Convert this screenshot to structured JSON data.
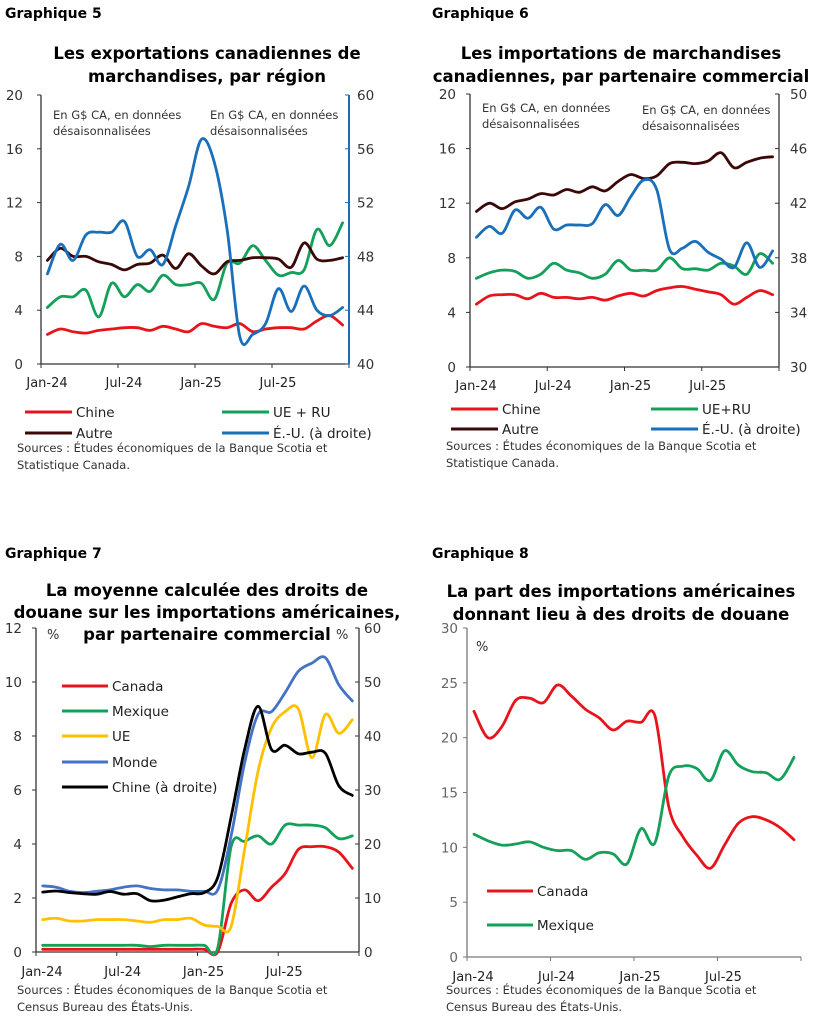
{
  "chart_data": [
    {
      "type": "line",
      "label": "Graphique 5",
      "title_lines": [
        "Les exportations canadiennes de",
        "marchandises, par région"
      ],
      "annotations": [
        "En G$ CA, en données",
        "désaisonnalisées",
        "En G$ CA, en données",
        "désaisonnalisées"
      ],
      "x": [
        "Jan-24",
        "Feb-24",
        "Mar-24",
        "Apr-24",
        "May-24",
        "Jun-24",
        "Jul-24",
        "Aug-24",
        "Sep-24",
        "Oct-24",
        "Nov-24",
        "Dec-24",
        "Jan-25",
        "Feb-25",
        "Mar-25",
        "Apr-25",
        "May-25",
        "Jun-25",
        "Jul-25",
        "Aug-25",
        "Sep-25",
        "Oct-25",
        "Nov-25",
        "Dec-25"
      ],
      "x_tick_labels": [
        "Jan-24",
        "Jul-24",
        "Jan-25",
        "Jul-25"
      ],
      "ylim_left": [
        0,
        20
      ],
      "yticks_left": [
        "0",
        "4",
        "8",
        "12",
        "16",
        "20"
      ],
      "ylim_right": [
        40,
        60
      ],
      "yticks_right": [
        "40",
        "44",
        "48",
        "52",
        "56",
        "60"
      ],
      "right_axis_color": "#1a6fba",
      "series": [
        {
          "name": "Chine",
          "axis": "left",
          "color": "#e8141c",
          "values": [
            2.2,
            2.6,
            2.4,
            2.3,
            2.5,
            2.6,
            2.7,
            2.7,
            2.5,
            2.8,
            2.6,
            2.4,
            3.0,
            2.8,
            2.7,
            3.0,
            2.4,
            2.6,
            2.7,
            2.7,
            2.6,
            3.2,
            3.6,
            2.9
          ]
        },
        {
          "name": "UE + RU",
          "axis": "left",
          "color": "#13a05a",
          "values": [
            4.2,
            5.0,
            5.0,
            5.5,
            3.5,
            6.0,
            5.0,
            5.9,
            5.4,
            6.6,
            5.9,
            5.9,
            6.0,
            4.8,
            7.5,
            7.5,
            8.8,
            7.7,
            6.6,
            6.8,
            7.0,
            10.0,
            8.8,
            10.5
          ]
        },
        {
          "name": "Autre",
          "axis": "left",
          "color": "#3b0808",
          "values": [
            7.7,
            8.6,
            8.0,
            8.0,
            7.6,
            7.4,
            7.0,
            7.4,
            7.5,
            8.1,
            7.1,
            8.2,
            7.3,
            6.7,
            7.6,
            7.7,
            7.9,
            7.9,
            7.8,
            7.2,
            9.0,
            7.8,
            7.7,
            7.9
          ]
        },
        {
          "name": "É.-U. (à droite)",
          "axis": "right",
          "color": "#1a6fba",
          "values": [
            46.7,
            48.9,
            47.7,
            49.6,
            49.8,
            49.8,
            50.6,
            48.0,
            48.5,
            47.4,
            50.3,
            53.2,
            56.7,
            55.0,
            50.0,
            42.0,
            42.2,
            43.0,
            45.6,
            43.9,
            45.8,
            44.0,
            43.6,
            44.2
          ]
        }
      ],
      "sources": [
        "Sources : Études économiques de la Banque Scotia et",
        "Statistique Canada."
      ]
    },
    {
      "type": "line",
      "label": "Graphique 6",
      "title_lines": [
        "Les importations de marchandises",
        "canadiennes, par partenaire commercial"
      ],
      "annotations": [
        "En G$ CA, en données",
        "désaisonnalisées",
        "En G$ CA, en données",
        "désaisonnalisées"
      ],
      "x": [
        "Jan-24",
        "Feb-24",
        "Mar-24",
        "Apr-24",
        "May-24",
        "Jun-24",
        "Jul-24",
        "Aug-24",
        "Sep-24",
        "Oct-24",
        "Nov-24",
        "Dec-24",
        "Jan-25",
        "Feb-25",
        "Mar-25",
        "Apr-25",
        "May-25",
        "Jun-25",
        "Jul-25",
        "Aug-25",
        "Sep-25",
        "Oct-25",
        "Nov-25",
        "Dec-25"
      ],
      "x_tick_labels": [
        "Jan-24",
        "Jul-24",
        "Jan-25",
        "Jul-25"
      ],
      "ylim_left": [
        0,
        20
      ],
      "yticks_left": [
        "0",
        "4",
        "8",
        "12",
        "16",
        "20"
      ],
      "ylim_right": [
        30,
        50
      ],
      "yticks_right": [
        "30",
        "34",
        "38",
        "42",
        "46",
        "50"
      ],
      "right_axis_color": "#333333",
      "series": [
        {
          "name": "Chine",
          "axis": "left",
          "color": "#e8141c",
          "values": [
            4.6,
            5.2,
            5.3,
            5.3,
            5.0,
            5.4,
            5.1,
            5.1,
            5.0,
            5.1,
            4.9,
            5.2,
            5.4,
            5.2,
            5.6,
            5.8,
            5.9,
            5.7,
            5.5,
            5.3,
            4.6,
            5.1,
            5.6,
            5.3
          ]
        },
        {
          "name": "UE+RU",
          "axis": "left",
          "color": "#13a05a",
          "values": [
            6.5,
            6.9,
            7.1,
            7.0,
            6.5,
            6.8,
            7.6,
            7.1,
            6.9,
            6.5,
            6.8,
            7.8,
            7.1,
            7.1,
            7.1,
            8.0,
            7.2,
            7.2,
            7.1,
            7.6,
            7.4,
            6.8,
            8.3,
            7.6
          ]
        },
        {
          "name": "Autre",
          "axis": "left",
          "color": "#3b0808",
          "values": [
            11.4,
            12.0,
            11.6,
            12.1,
            12.3,
            12.7,
            12.6,
            13.0,
            12.8,
            13.2,
            12.9,
            13.6,
            14.1,
            13.8,
            14.0,
            14.9,
            15.0,
            14.9,
            15.1,
            15.7,
            14.6,
            15.0,
            15.3,
            15.4
          ]
        },
        {
          "name": "É.-U. (à droite)",
          "axis": "right",
          "color": "#1a6fba",
          "values": [
            39.5,
            40.3,
            39.8,
            41.5,
            40.9,
            41.7,
            40.1,
            40.4,
            40.4,
            40.5,
            41.9,
            41.1,
            42.5,
            43.7,
            43.0,
            38.6,
            38.7,
            39.2,
            38.4,
            37.9,
            37.3,
            39.1,
            37.3,
            38.5
          ]
        }
      ],
      "sources": [
        "Sources : Études économiques de la Banque Scotia et",
        "Statistique Canada."
      ]
    },
    {
      "type": "line",
      "label": "Graphique 7",
      "title_lines": [
        "La moyenne calculée des droits de",
        "douane sur les importations américaines,",
        "par partenaire commercial"
      ],
      "unit_left": "%",
      "unit_right": "%",
      "x": [
        "Jan-24",
        "Feb-24",
        "Mar-24",
        "Apr-24",
        "May-24",
        "Jun-24",
        "Jul-24",
        "Aug-24",
        "Sep-24",
        "Oct-24",
        "Nov-24",
        "Dec-24",
        "Jan-25",
        "Feb-25",
        "Mar-25",
        "Apr-25",
        "May-25",
        "Jun-25",
        "Jul-25",
        "Aug-25",
        "Sep-25",
        "Oct-25",
        "Nov-25",
        "Dec-25"
      ],
      "x_tick_labels": [
        "Jan-24",
        "Jul-24",
        "Jan-25",
        "Jul-25"
      ],
      "ylim_left": [
        0,
        12
      ],
      "yticks_left": [
        "0",
        "2",
        "4",
        "6",
        "8",
        "10",
        "12"
      ],
      "ylim_right": [
        0,
        60
      ],
      "yticks_right": [
        "0",
        "10",
        "20",
        "30",
        "40",
        "50",
        "60"
      ],
      "right_axis_color": "#333333",
      "series": [
        {
          "name": "Canada",
          "axis": "left",
          "color": "#e8141c",
          "values": [
            0.1,
            0.1,
            0.1,
            0.1,
            0.1,
            0.1,
            0.1,
            0.1,
            0.1,
            0.1,
            0.1,
            0.1,
            0.1,
            0.0,
            1.8,
            2.3,
            1.9,
            2.4,
            2.9,
            3.8,
            3.9,
            3.9,
            3.7,
            3.1
          ]
        },
        {
          "name": "Mexique",
          "axis": "left",
          "color": "#13a05a",
          "values": [
            0.25,
            0.25,
            0.25,
            0.25,
            0.25,
            0.25,
            0.25,
            0.25,
            0.2,
            0.25,
            0.25,
            0.25,
            0.25,
            0.15,
            3.9,
            4.1,
            4.3,
            4.0,
            4.7,
            4.7,
            4.7,
            4.6,
            4.2,
            4.3
          ]
        },
        {
          "name": "UE",
          "axis": "left",
          "color": "#ffc000",
          "values": [
            1.2,
            1.25,
            1.15,
            1.15,
            1.2,
            1.2,
            1.2,
            1.15,
            1.1,
            1.2,
            1.2,
            1.25,
            1.0,
            0.95,
            0.95,
            3.8,
            6.7,
            8.3,
            8.9,
            9.0,
            7.2,
            8.8,
            8.1,
            8.6
          ]
        },
        {
          "name": "Monde",
          "axis": "left",
          "color": "#4472c4",
          "values": [
            2.45,
            2.4,
            2.25,
            2.2,
            2.25,
            2.3,
            2.4,
            2.45,
            2.35,
            2.3,
            2.3,
            2.25,
            2.25,
            2.3,
            4.3,
            7.0,
            8.8,
            8.9,
            9.6,
            10.4,
            10.7,
            10.9,
            9.9,
            9.3
          ]
        },
        {
          "name": "Chine (à droite)",
          "axis": "right",
          "color": "#000000",
          "values": [
            11.1,
            11.3,
            11.0,
            10.8,
            10.7,
            11.2,
            10.7,
            10.8,
            9.5,
            9.6,
            10.2,
            10.8,
            11.0,
            13.8,
            25.0,
            37.5,
            45.5,
            37.5,
            38.3,
            36.7,
            37.0,
            36.8,
            30.8,
            29.0
          ]
        }
      ],
      "sources": [
        "Sources : Études économiques de la Banque Scotia et",
        "Census Bureau des États-Unis."
      ]
    },
    {
      "type": "line",
      "label": "Graphique 8",
      "title_lines": [
        "La part des importations américaines",
        "donnant lieu à des droits de douane"
      ],
      "unit_left": "%",
      "x": [
        "Jan-24",
        "Feb-24",
        "Mar-24",
        "Apr-24",
        "May-24",
        "Jun-24",
        "Jul-24",
        "Aug-24",
        "Sep-24",
        "Oct-24",
        "Nov-24",
        "Dec-24",
        "Jan-25",
        "Feb-25",
        "Mar-25",
        "Apr-25",
        "May-25",
        "Jun-25",
        "Jul-25",
        "Aug-25",
        "Sep-25",
        "Oct-25",
        "Nov-25",
        "Dec-25"
      ],
      "x_tick_labels": [
        "Jan-24",
        "Jul-24",
        "Jan-25",
        "Jul-25"
      ],
      "ylim_left": [
        0,
        30
      ],
      "yticks_left": [
        "0",
        "5",
        "10",
        "15",
        "20",
        "25",
        "30"
      ],
      "series": [
        {
          "name": "Canada",
          "axis": "left",
          "color": "#e8141c",
          "values": [
            22.4,
            20.0,
            21.0,
            23.4,
            23.6,
            23.2,
            24.8,
            23.8,
            22.6,
            21.8,
            20.7,
            21.5,
            21.4,
            22.0,
            13.7,
            11.0,
            9.3,
            8.1,
            10.2,
            12.2,
            12.8,
            12.5,
            11.8,
            10.7
          ]
        },
        {
          "name": "Mexique",
          "axis": "left",
          "color": "#13a05a",
          "values": [
            11.2,
            10.6,
            10.2,
            10.3,
            10.5,
            10.0,
            9.7,
            9.7,
            8.9,
            9.5,
            9.4,
            8.5,
            11.7,
            10.4,
            16.5,
            17.4,
            17.2,
            16.1,
            18.8,
            17.5,
            16.9,
            16.8,
            16.2,
            18.2
          ]
        }
      ],
      "sources": [
        "Sources : Études économiques de la Banque Scotia et",
        "Census Bureau des États-Unis."
      ]
    }
  ]
}
